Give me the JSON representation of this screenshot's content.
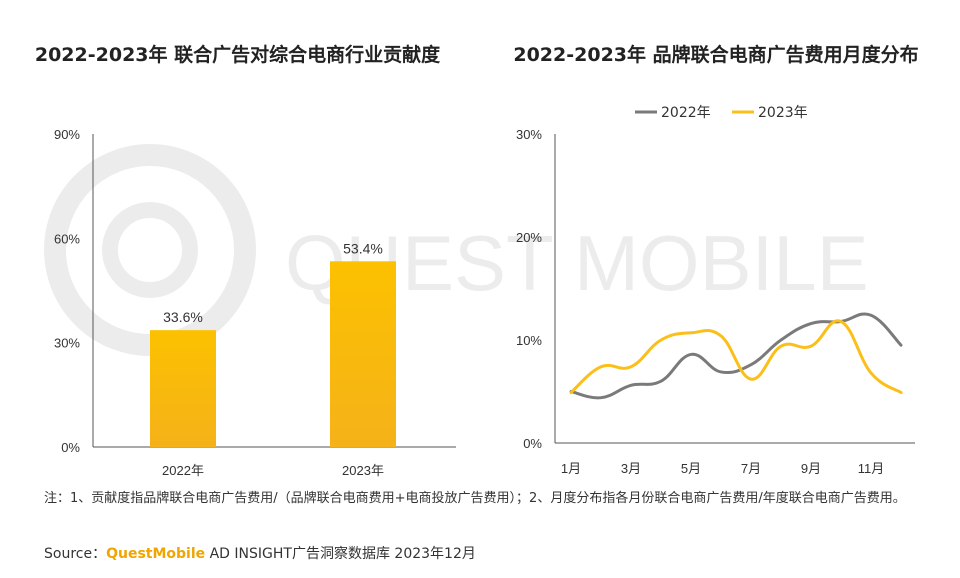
{
  "watermark": "QUEST MOBILE",
  "colors": {
    "bar": "#fcc100",
    "bar_bottom": "#f5b219",
    "line_2022": "#7a7a7a",
    "line_2023": "#fbbf1a",
    "brand": "#f0a500"
  },
  "note": "注：1、贡献度指品牌联合电商广告费用/（品牌联合电商费用+电商投放广告费用）；2、月度分布指各月份联合电商广告费用/年度联合电商广告费用。",
  "source": {
    "prefix": "Source：",
    "brand": "QuestMobile",
    "rest": " AD INSIGHT广告洞察数据库 2023年12月"
  },
  "chart_data": [
    {
      "type": "bar",
      "title": "2022-2023年 联合广告对综合电商行业贡献度",
      "categories": [
        "2022年",
        "2023年"
      ],
      "values": [
        33.6,
        53.4
      ],
      "value_labels": [
        "33.6%",
        "53.4%"
      ],
      "yticks": [
        "0%",
        "30%",
        "60%",
        "90%"
      ],
      "ylim": [
        0,
        90
      ],
      "grid": false
    },
    {
      "type": "line",
      "title": "2022-2023年 品牌联合电商广告费用月度分布",
      "x": [
        1,
        2,
        3,
        4,
        5,
        6,
        7,
        8,
        9,
        10,
        11,
        12
      ],
      "xticks": [
        "1月",
        "3月",
        "5月",
        "7月",
        "9月",
        "11月"
      ],
      "yticks": [
        "0%",
        "10%",
        "20%",
        "30%"
      ],
      "ylim": [
        0,
        30
      ],
      "legend_position": "top",
      "grid": false,
      "series": [
        {
          "name": "2022年",
          "values": [
            5.0,
            4.4,
            5.6,
            6.0,
            8.6,
            6.9,
            7.6,
            10.0,
            11.6,
            11.8,
            12.4,
            9.5
          ]
        },
        {
          "name": "2023年",
          "values": [
            4.9,
            7.4,
            7.4,
            10.0,
            10.7,
            10.4,
            6.2,
            9.4,
            9.4,
            11.8,
            6.8,
            4.9
          ]
        }
      ]
    }
  ]
}
